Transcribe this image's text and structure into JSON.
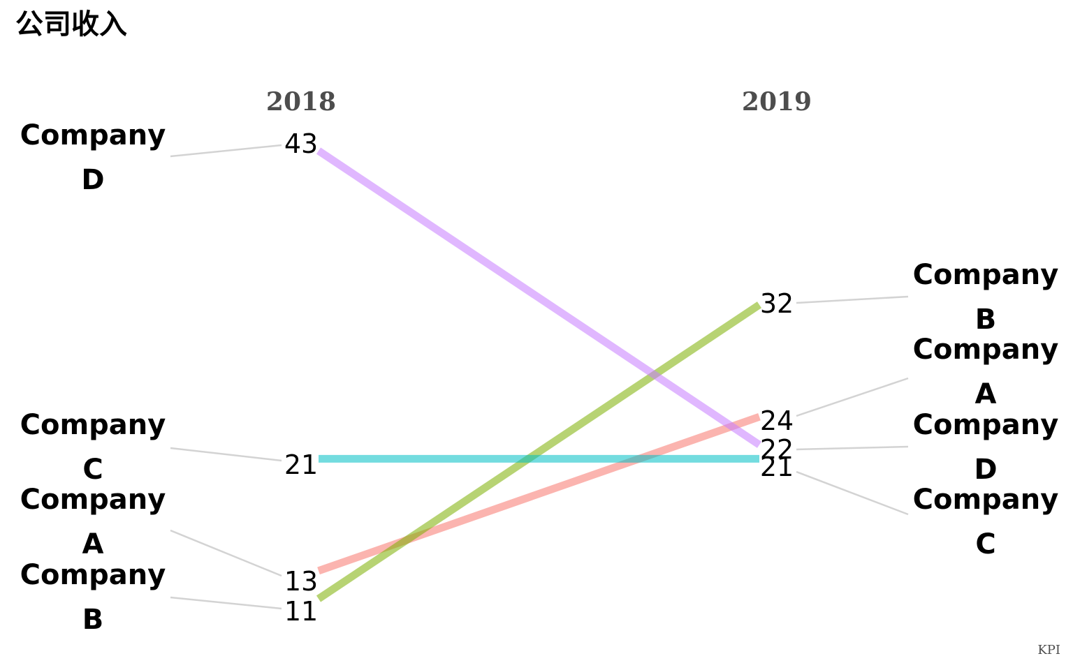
{
  "title": "公司收入",
  "caption": "KPI",
  "chart_data": {
    "type": "line",
    "x": [
      "2018",
      "2019"
    ],
    "series": [
      {
        "name": "Company A",
        "values": [
          13,
          24
        ],
        "color": "#F8766D"
      },
      {
        "name": "Company B",
        "values": [
          11,
          32
        ],
        "color": "#7CAE00"
      },
      {
        "name": "Company C",
        "values": [
          21,
          21
        ],
        "color": "#00BFC4"
      },
      {
        "name": "Company D",
        "values": [
          43,
          22
        ],
        "color": "#C77CFF"
      }
    ],
    "left_labels": [
      {
        "line1": "Company",
        "line2": "D",
        "value": "43"
      },
      {
        "line1": "Company",
        "line2": "C",
        "value": "21"
      },
      {
        "line1": "Company",
        "line2": "A",
        "value": "13"
      },
      {
        "line1": "Company",
        "line2": "B",
        "value": "11"
      }
    ],
    "right_labels": [
      {
        "line1": "Company",
        "line2": "B",
        "value": "32"
      },
      {
        "line1": "Company",
        "line2": "A",
        "value": "24"
      },
      {
        "line1": "Company",
        "line2": "D",
        "value": "22"
      },
      {
        "line1": "Company",
        "line2": "C",
        "value": "21"
      }
    ],
    "ylim": [
      11,
      43
    ],
    "grid": false,
    "legend": "none"
  }
}
